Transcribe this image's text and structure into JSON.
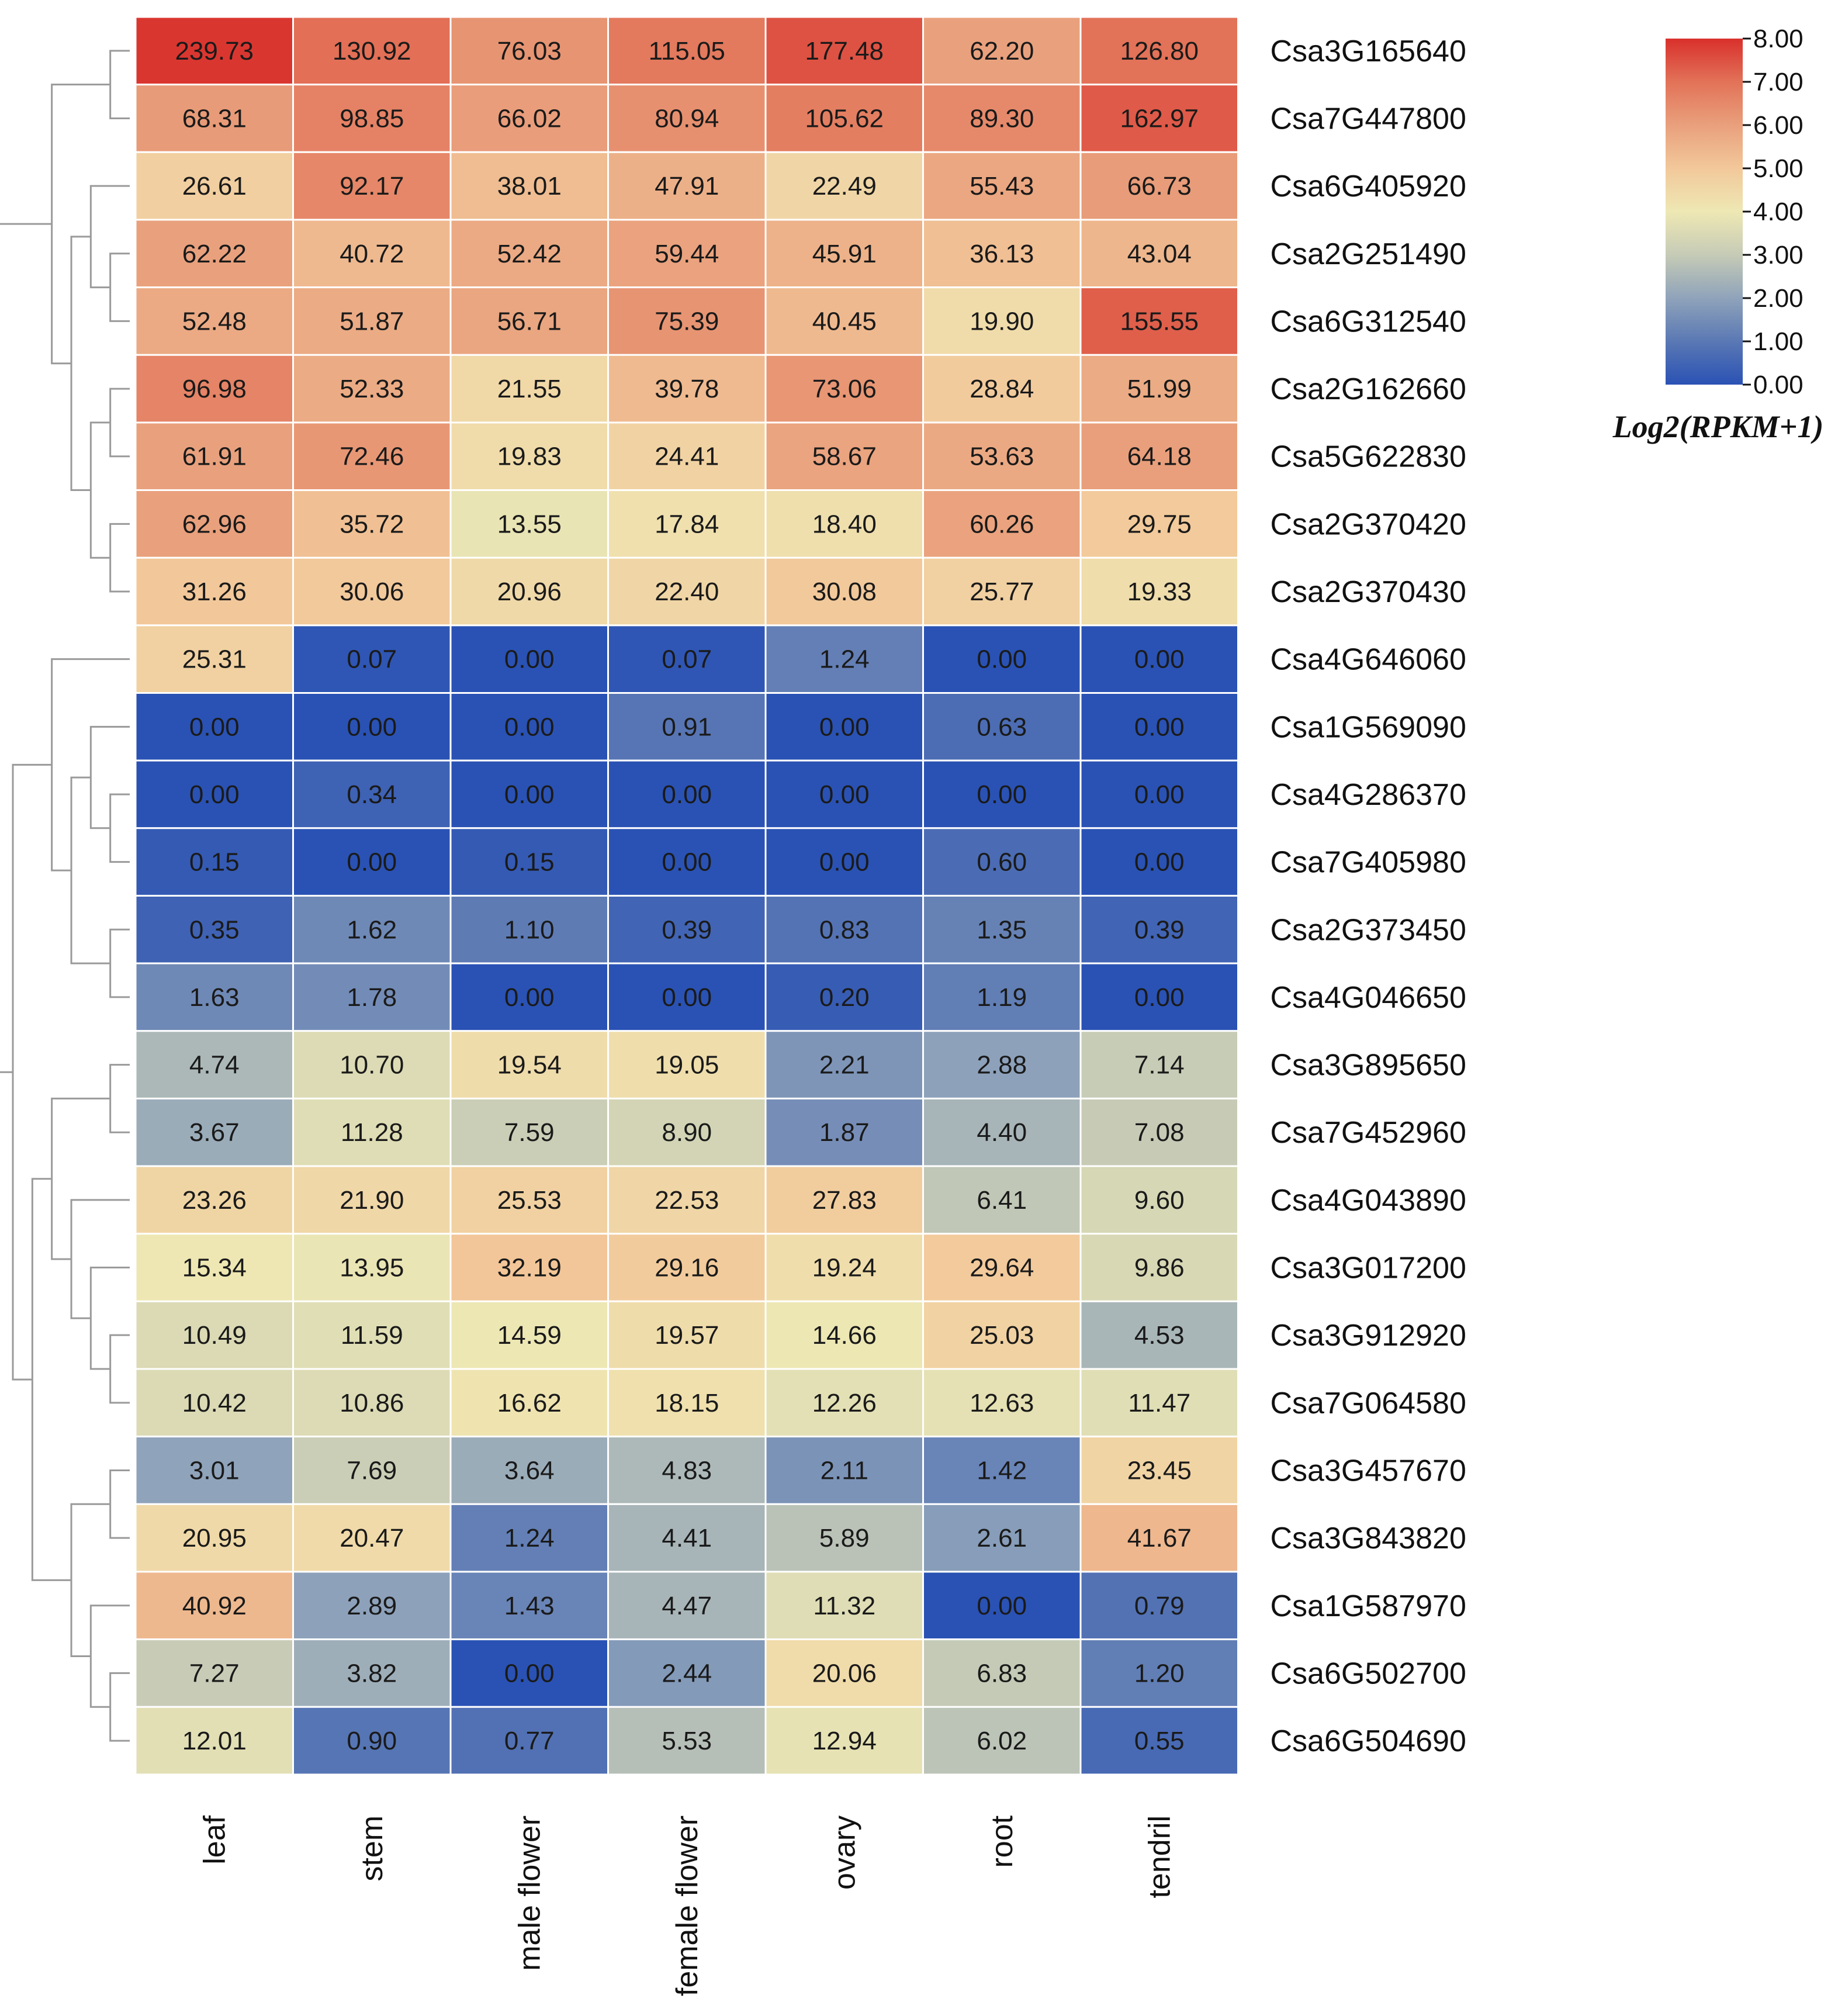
{
  "chart_data": {
    "type": "heatmap",
    "x": [
      "leaf",
      "stem",
      "male flower",
      "female flower",
      "ovary",
      "root",
      "tendril"
    ],
    "y": [
      "Csa3G165640",
      "Csa7G447800",
      "Csa6G405920",
      "Csa2G251490",
      "Csa6G312540",
      "Csa2G162660",
      "Csa5G622830",
      "Csa2G370420",
      "Csa2G370430",
      "Csa4G646060",
      "Csa1G569090",
      "Csa4G286370",
      "Csa7G405980",
      "Csa2G373450",
      "Csa4G046650",
      "Csa3G895650",
      "Csa7G452960",
      "Csa4G043890",
      "Csa3G017200",
      "Csa3G912920",
      "Csa7G064580",
      "Csa3G457670",
      "Csa3G843820",
      "Csa1G587970",
      "Csa6G502700",
      "Csa6G504690"
    ],
    "values": [
      [
        "239.73",
        "130.92",
        "76.03",
        "115.05",
        "177.48",
        "62.20",
        "126.80"
      ],
      [
        "68.31",
        "98.85",
        "66.02",
        "80.94",
        "105.62",
        "89.30",
        "162.97"
      ],
      [
        "26.61",
        "92.17",
        "38.01",
        "47.91",
        "22.49",
        "55.43",
        "66.73"
      ],
      [
        "62.22",
        "40.72",
        "52.42",
        "59.44",
        "45.91",
        "36.13",
        "43.04"
      ],
      [
        "52.48",
        "51.87",
        "56.71",
        "75.39",
        "40.45",
        "19.90",
        "155.55"
      ],
      [
        "96.98",
        "52.33",
        "21.55",
        "39.78",
        "73.06",
        "28.84",
        "51.99"
      ],
      [
        "61.91",
        "72.46",
        "19.83",
        "24.41",
        "58.67",
        "53.63",
        "64.18"
      ],
      [
        "62.96",
        "35.72",
        "13.55",
        "17.84",
        "18.40",
        "60.26",
        "29.75"
      ],
      [
        "31.26",
        "30.06",
        "20.96",
        "22.40",
        "30.08",
        "25.77",
        "19.33"
      ],
      [
        "25.31",
        "0.07",
        "0.00",
        "0.07",
        "1.24",
        "0.00",
        "0.00"
      ],
      [
        "0.00",
        "0.00",
        "0.00",
        "0.91",
        "0.00",
        "0.63",
        "0.00"
      ],
      [
        "0.00",
        "0.34",
        "0.00",
        "0.00",
        "0.00",
        "0.00",
        "0.00"
      ],
      [
        "0.15",
        "0.00",
        "0.15",
        "0.00",
        "0.00",
        "0.60",
        "0.00"
      ],
      [
        "0.35",
        "1.62",
        "1.10",
        "0.39",
        "0.83",
        "1.35",
        "0.39"
      ],
      [
        "1.63",
        "1.78",
        "0.00",
        "0.00",
        "0.20",
        "1.19",
        "0.00"
      ],
      [
        "4.74",
        "10.70",
        "19.54",
        "19.05",
        "2.21",
        "2.88",
        "7.14"
      ],
      [
        "3.67",
        "11.28",
        "7.59",
        "8.90",
        "1.87",
        "4.40",
        "7.08"
      ],
      [
        "23.26",
        "21.90",
        "25.53",
        "22.53",
        "27.83",
        "6.41",
        "9.60"
      ],
      [
        "15.34",
        "13.95",
        "32.19",
        "29.16",
        "19.24",
        "29.64",
        "9.86"
      ],
      [
        "10.49",
        "11.59",
        "14.59",
        "19.57",
        "14.66",
        "25.03",
        "4.53"
      ],
      [
        "10.42",
        "10.86",
        "16.62",
        "18.15",
        "12.26",
        "12.63",
        "11.47"
      ],
      [
        "3.01",
        "7.69",
        "3.64",
        "4.83",
        "2.11",
        "1.42",
        "23.45"
      ],
      [
        "20.95",
        "20.47",
        "1.24",
        "4.41",
        "5.89",
        "2.61",
        "41.67"
      ],
      [
        "40.92",
        "2.89",
        "1.43",
        "4.47",
        "11.32",
        "0.00",
        "0.79"
      ],
      [
        "7.27",
        "3.82",
        "0.00",
        "2.44",
        "20.06",
        "6.83",
        "1.20"
      ],
      [
        "12.01",
        "0.90",
        "0.77",
        "5.53",
        "12.94",
        "6.02",
        "0.55"
      ]
    ],
    "colorbar": {
      "title": "Log2(RPKM+1)",
      "ticks": [
        "8.00",
        "7.00",
        "6.00",
        "5.00",
        "4.00",
        "3.00",
        "2.00",
        "1.00",
        "0.00"
      ],
      "range": [
        0,
        8
      ],
      "colors": [
        "#2a52b4",
        "#5a78b4",
        "#8fa3ba",
        "#c6cbb6",
        "#eee8b4",
        "#f2c89a",
        "#e9a07c",
        "#e27258",
        "#d9302c"
      ]
    },
    "dendrogram": "left",
    "grid": false
  }
}
